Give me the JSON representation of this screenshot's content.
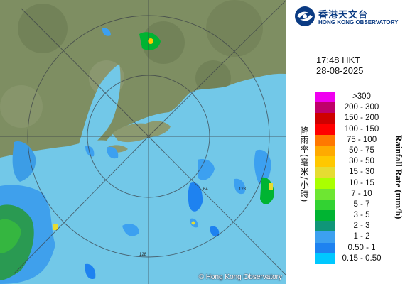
{
  "brand": {
    "name_cn": "香港天文台",
    "name_en": "HONG KONG OBSERVATORY",
    "color": "#0b3b83"
  },
  "map": {
    "copyright": "© Hong Kong Observatory",
    "range_ring_labels": [
      "64",
      "128"
    ],
    "sea_color": "#68c8ec",
    "land_color": "#7b8b5c"
  },
  "timestamp": {
    "time": "17:48 HKT",
    "date": "28-08-2025"
  },
  "legend": {
    "axis_label_cn": "降雨率(毫米/小時)",
    "axis_label_en": "Rainfall Rate (mm/h)",
    "items": [
      {
        "label": ">300",
        "color": "#f000f0"
      },
      {
        "label": "200 - 300",
        "color": "#c0006a"
      },
      {
        "label": "150 - 200",
        "color": "#cf0000"
      },
      {
        "label": "100 - 150",
        "color": "#ff0000"
      },
      {
        "label": "75 - 100",
        "color": "#ff7800"
      },
      {
        "label": "50 - 75",
        "color": "#ffaa00"
      },
      {
        "label": "30 - 50",
        "color": "#ffc800"
      },
      {
        "label": "15 - 30",
        "color": "#e6dc32"
      },
      {
        "label": "10 - 15",
        "color": "#aaff00"
      },
      {
        "label": "7 - 10",
        "color": "#6ee632"
      },
      {
        "label": "5 - 7",
        "color": "#32d232"
      },
      {
        "label": "3 - 5",
        "color": "#00b432"
      },
      {
        "label": "2 - 3",
        "color": "#0f9678"
      },
      {
        "label": "1 - 2",
        "color": "#3ca0f0"
      },
      {
        "label": "0.50 - 1",
        "color": "#1e82f0"
      },
      {
        "label": "0.15 - 0.50",
        "color": "#00c8ff"
      }
    ]
  }
}
